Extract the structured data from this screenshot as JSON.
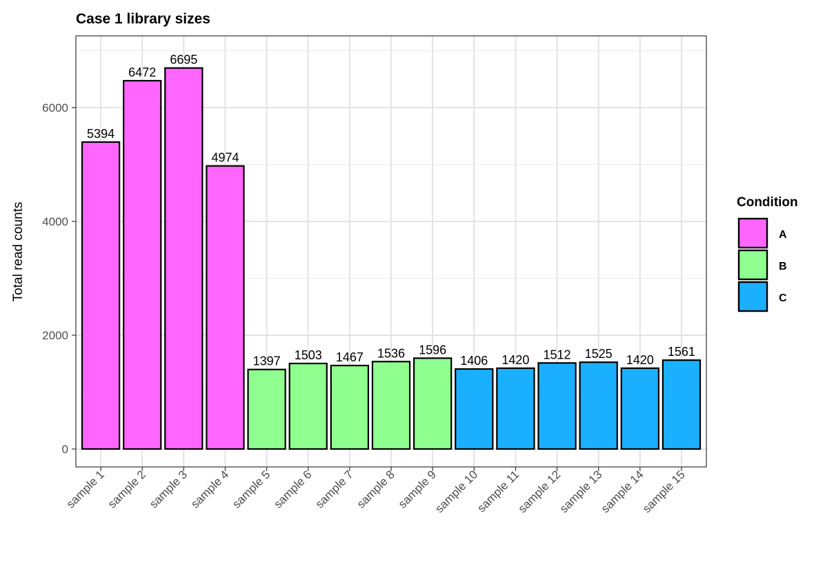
{
  "chart_data": {
    "type": "bar",
    "title": "Case 1 library sizes",
    "xlabel": "",
    "ylabel": "Total read counts",
    "ylim": [
      -315,
      7260
    ],
    "yticks": [
      0,
      2000,
      4000,
      6000
    ],
    "grid": true,
    "categories": [
      "sample 1",
      "sample 2",
      "sample 3",
      "sample 4",
      "sample 5",
      "sample 6",
      "sample 7",
      "sample 8",
      "sample 9",
      "sample 10",
      "sample 11",
      "sample 12",
      "sample 13",
      "sample 14",
      "sample 15"
    ],
    "values": [
      5394,
      6472,
      6695,
      4974,
      1397,
      1503,
      1467,
      1536,
      1596,
      1406,
      1420,
      1512,
      1525,
      1420,
      1561
    ],
    "groups": [
      "A",
      "A",
      "A",
      "A",
      "B",
      "B",
      "B",
      "B",
      "B",
      "C",
      "C",
      "C",
      "C",
      "C",
      "C"
    ],
    "legend": {
      "title": "Condition",
      "placement": "right",
      "entries": [
        {
          "label": "A",
          "color": "#FF66FF"
        },
        {
          "label": "B",
          "color": "#8FFF8F"
        },
        {
          "label": "C",
          "color": "#1AB0FF"
        }
      ]
    }
  }
}
